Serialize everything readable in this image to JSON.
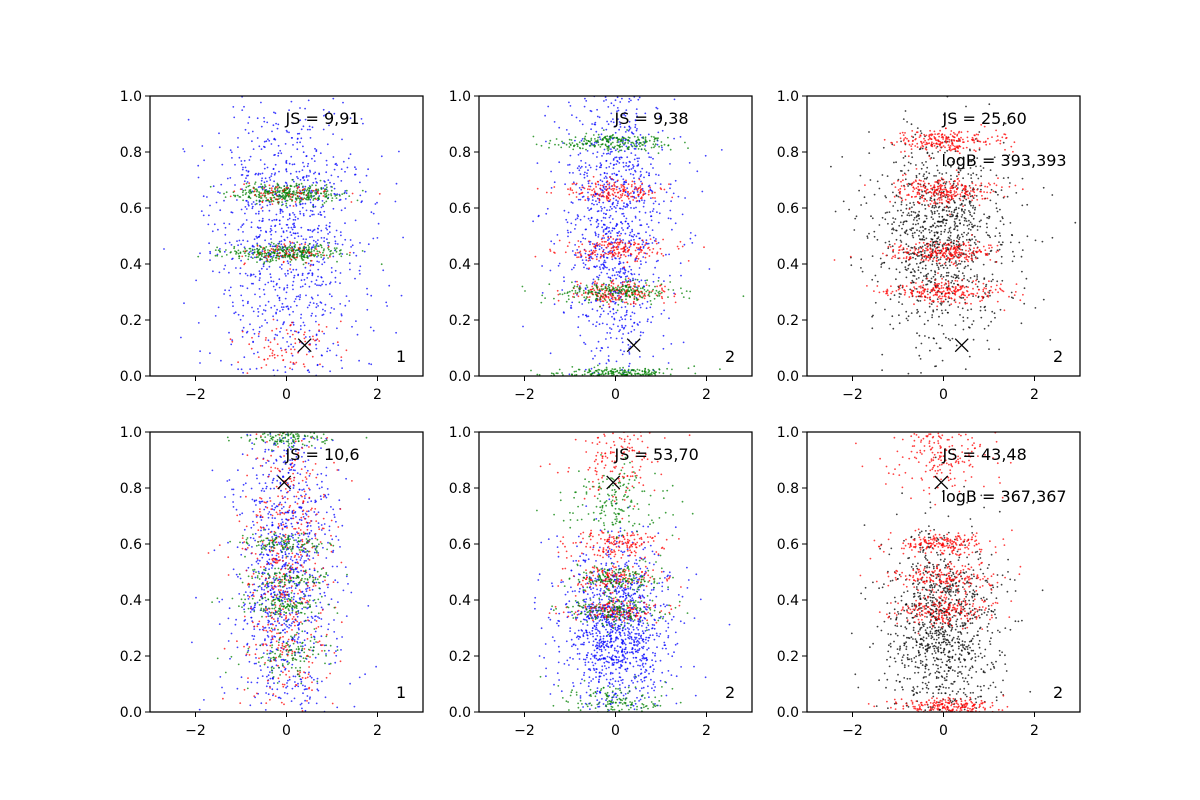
{
  "colors": {
    "blue": "#0000ff",
    "green": "#008000",
    "red": "#ff0000",
    "black": "#000000"
  },
  "chart_data": [
    {
      "type": "scatter",
      "panel": 1,
      "xlim": [
        -3,
        3
      ],
      "ylim": [
        0,
        1
      ],
      "xticks": [
        -2,
        0,
        2
      ],
      "yticks": [
        0.0,
        0.2,
        0.4,
        0.6,
        0.8,
        1.0
      ],
      "grid": false,
      "marker": {
        "x": 0.4,
        "y": 0.11
      },
      "annotations": [
        "JS = 9,91"
      ],
      "corner_label": "1",
      "series": [
        {
          "color": "blue",
          "count": 1100,
          "bands": [
            {
              "y": 0.5,
              "w": 0.3
            }
          ],
          "spread": 0.85
        },
        {
          "color": "green",
          "count": 650,
          "bands": [
            {
              "y": 0.65,
              "w": 0.018
            },
            {
              "y": 0.44,
              "w": 0.015
            }
          ],
          "spread": 0.6
        },
        {
          "color": "red",
          "count": 220,
          "bands": [
            {
              "y": 0.65,
              "w": 0.02
            },
            {
              "y": 0.44,
              "w": 0.02
            },
            {
              "y": 0.1,
              "w": 0.05
            }
          ],
          "spread": 0.6
        }
      ]
    },
    {
      "type": "scatter",
      "panel": 2,
      "xlim": [
        -3,
        3
      ],
      "ylim": [
        0,
        1
      ],
      "xticks": [
        -2,
        0,
        2
      ],
      "yticks": [
        0.0,
        0.2,
        0.4,
        0.6,
        0.8,
        1.0
      ],
      "grid": false,
      "marker": {
        "x": 0.4,
        "y": 0.11
      },
      "annotations": [
        "JS = 9,38"
      ],
      "corner_label": "2",
      "series": [
        {
          "color": "blue",
          "count": 1100,
          "bands": [
            {
              "y": 0.55,
              "w": 0.28
            }
          ],
          "spread": 0.6
        },
        {
          "color": "red",
          "count": 550,
          "bands": [
            {
              "y": 0.66,
              "w": 0.02
            },
            {
              "y": 0.45,
              "w": 0.02
            },
            {
              "y": 0.3,
              "w": 0.02
            }
          ],
          "spread": 0.55
        },
        {
          "color": "green",
          "count": 650,
          "bands": [
            {
              "y": 0.835,
              "w": 0.015
            },
            {
              "y": 0.01,
              "w": 0.01
            },
            {
              "y": 0.3,
              "w": 0.02
            }
          ],
          "spread": 0.7
        }
      ]
    },
    {
      "type": "scatter",
      "panel": 3,
      "xlim": [
        -3,
        3
      ],
      "ylim": [
        0,
        1
      ],
      "xticks": [
        -2,
        0,
        2
      ],
      "yticks": [
        0.0,
        0.2,
        0.4,
        0.6,
        0.8,
        1.0
      ],
      "grid": false,
      "marker": {
        "x": 0.4,
        "y": 0.11
      },
      "annotations": [
        "JS = 25,60",
        "logB = 393,393"
      ],
      "corner_label": "2",
      "series": [
        {
          "color": "black",
          "count": 1100,
          "bands": [
            {
              "y": 0.5,
              "w": 0.18
            }
          ],
          "spread": 0.75
        },
        {
          "color": "red",
          "count": 1000,
          "bands": [
            {
              "y": 0.84,
              "w": 0.02
            },
            {
              "y": 0.66,
              "w": 0.025
            },
            {
              "y": 0.44,
              "w": 0.02
            },
            {
              "y": 0.3,
              "w": 0.02
            }
          ],
          "spread": 0.6
        }
      ]
    },
    {
      "type": "scatter",
      "panel": 4,
      "xlim": [
        -3,
        3
      ],
      "ylim": [
        0,
        1
      ],
      "xticks": [
        -2,
        0,
        2
      ],
      "yticks": [
        0.0,
        0.2,
        0.4,
        0.6,
        0.8,
        1.0
      ],
      "grid": false,
      "marker": {
        "x": -0.05,
        "y": 0.82
      },
      "annotations": [
        "JS = 10,6"
      ],
      "corner_label": "1",
      "series": [
        {
          "color": "blue",
          "count": 1100,
          "bands": [
            {
              "y": 0.5,
              "w": 0.3
            }
          ],
          "spread": 0.55
        },
        {
          "color": "red",
          "count": 550,
          "bands": [
            {
              "y": 0.5,
              "w": 0.3
            }
          ],
          "spread": 0.5
        },
        {
          "color": "green",
          "count": 600,
          "bands": [
            {
              "y": 0.98,
              "w": 0.015
            },
            {
              "y": 0.6,
              "w": 0.02
            },
            {
              "y": 0.48,
              "w": 0.02
            },
            {
              "y": 0.38,
              "w": 0.02
            },
            {
              "y": 0.2,
              "w": 0.05
            }
          ],
          "spread": 0.45
        }
      ]
    },
    {
      "type": "scatter",
      "panel": 5,
      "xlim": [
        -3,
        3
      ],
      "ylim": [
        0,
        1
      ],
      "xticks": [
        -2,
        0,
        2
      ],
      "yticks": [
        0.0,
        0.2,
        0.4,
        0.6,
        0.8,
        1.0
      ],
      "grid": false,
      "marker": {
        "x": -0.05,
        "y": 0.82
      },
      "annotations": [
        "JS = 53,70"
      ],
      "corner_label": "2",
      "series": [
        {
          "color": "blue",
          "count": 1200,
          "bands": [
            {
              "y": 0.3,
              "w": 0.15
            }
          ],
          "spread": 0.6
        },
        {
          "color": "red",
          "count": 600,
          "bands": [
            {
              "y": 0.6,
              "w": 0.025
            },
            {
              "y": 0.48,
              "w": 0.02
            },
            {
              "y": 0.36,
              "w": 0.02
            },
            {
              "y": 0.9,
              "w": 0.08
            }
          ],
          "spread": 0.5
        },
        {
          "color": "green",
          "count": 650,
          "bands": [
            {
              "y": 0.04,
              "w": 0.03
            },
            {
              "y": 0.48,
              "w": 0.025
            },
            {
              "y": 0.36,
              "w": 0.025
            },
            {
              "y": 0.75,
              "w": 0.06
            }
          ],
          "spread": 0.55
        }
      ]
    },
    {
      "type": "scatter",
      "panel": 6,
      "xlim": [
        -3,
        3
      ],
      "ylim": [
        0,
        1
      ],
      "xticks": [
        -2,
        0,
        2
      ],
      "yticks": [
        0.0,
        0.2,
        0.4,
        0.6,
        0.8,
        1.0
      ],
      "grid": false,
      "marker": {
        "x": -0.05,
        "y": 0.82
      },
      "annotations": [
        "JS = 43,48",
        "logB = 367,367"
      ],
      "corner_label": "2",
      "series": [
        {
          "color": "black",
          "count": 1100,
          "bands": [
            {
              "y": 0.3,
              "w": 0.17
            }
          ],
          "spread": 0.65
        },
        {
          "color": "red",
          "count": 1000,
          "bands": [
            {
              "y": 0.92,
              "w": 0.06
            },
            {
              "y": 0.6,
              "w": 0.02
            },
            {
              "y": 0.48,
              "w": 0.025
            },
            {
              "y": 0.36,
              "w": 0.025
            },
            {
              "y": 0.02,
              "w": 0.015
            }
          ],
          "spread": 0.55
        }
      ]
    }
  ]
}
